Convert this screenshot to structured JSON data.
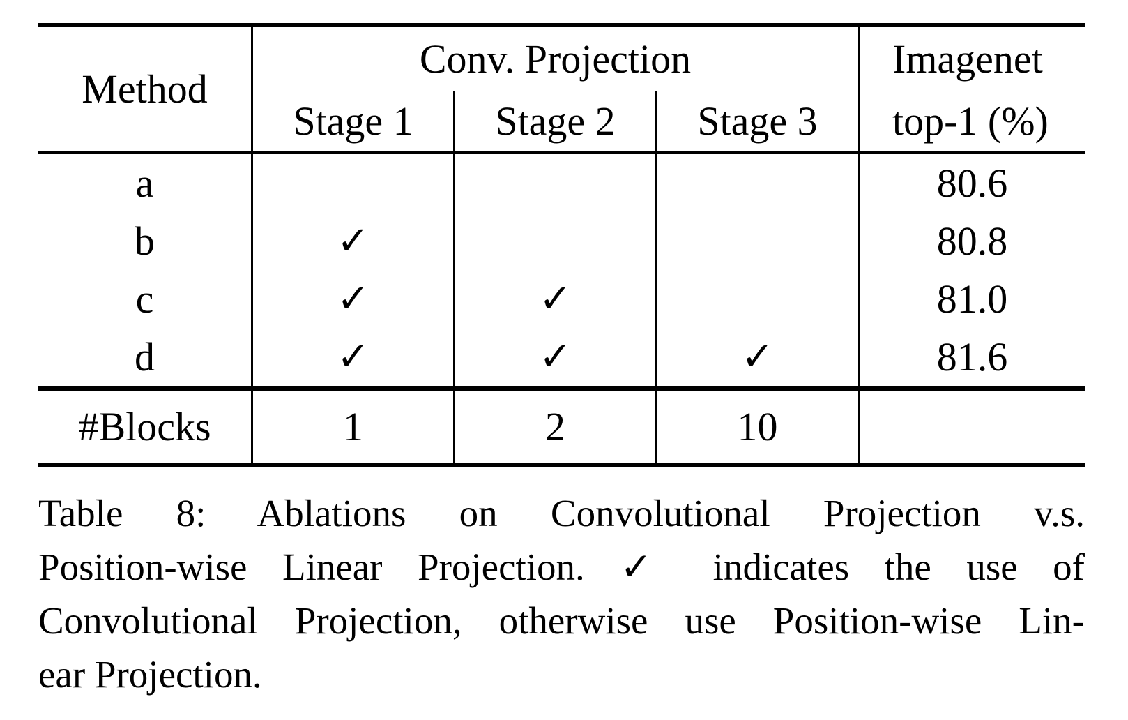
{
  "table": {
    "header": {
      "method_label": "Method",
      "group_label": "Conv. Projection",
      "stage1": "Stage 1",
      "stage2": "Stage 2",
      "stage3": "Stage 3",
      "imagenet_line1": "Imagenet",
      "imagenet_line2": "top-1 (%)"
    },
    "rows": [
      {
        "method": "a",
        "stage1": "",
        "stage2": "",
        "stage3": "",
        "top1": "80.6"
      },
      {
        "method": "b",
        "stage1": "✓",
        "stage2": "",
        "stage3": "",
        "top1": "80.8"
      },
      {
        "method": "c",
        "stage1": "✓",
        "stage2": "✓",
        "stage3": "",
        "top1": "81.0"
      },
      {
        "method": "d",
        "stage1": "✓",
        "stage2": "✓",
        "stage3": "✓",
        "top1": "81.6"
      }
    ],
    "blocks": {
      "label": "#Blocks",
      "stage1": "1",
      "stage2": "2",
      "stage3": "10",
      "top1": ""
    }
  },
  "caption": {
    "line1": "Table 8: Ablations on Convolutional Projection v.s.",
    "line2": "Position-wise Linear Projection. ✓ indicates the use of",
    "line3": "Convolutional Projection, otherwise use Position-wise Lin-",
    "line4": "ear Projection."
  },
  "colors": {
    "text": "#000000",
    "background": "#ffffff",
    "rule": "#000000"
  }
}
